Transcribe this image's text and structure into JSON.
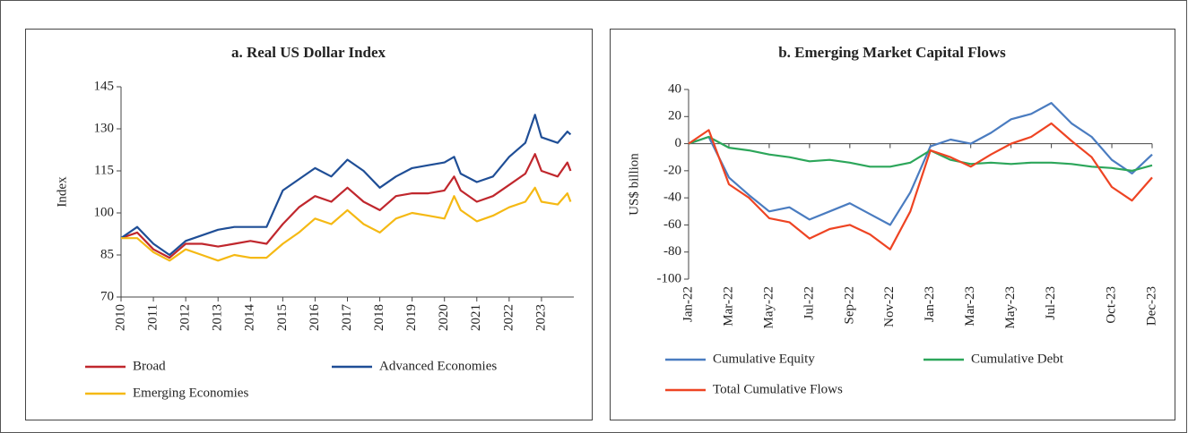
{
  "chart_data": [
    {
      "type": "line",
      "title": "a. Real US Dollar Index",
      "y_label": "Index",
      "x": [
        2010,
        2010.5,
        2011,
        2011.5,
        2012,
        2012.5,
        2013,
        2013.5,
        2014,
        2014.5,
        2015,
        2015.5,
        2016,
        2016.5,
        2017,
        2017.5,
        2018,
        2018.5,
        2019,
        2019.5,
        2020,
        2020.3,
        2020.5,
        2021,
        2021.5,
        2022,
        2022.5,
        2022.8,
        2023,
        2023.5,
        2023.8,
        2023.9
      ],
      "series": [
        {
          "name": "Broad",
          "color": "#c0272d",
          "values": [
            91,
            93,
            87,
            84,
            89,
            89,
            88,
            89,
            90,
            89,
            96,
            102,
            106,
            104,
            109,
            104,
            101,
            106,
            107,
            107,
            108,
            113,
            108,
            104,
            106,
            110,
            114,
            121,
            115,
            113,
            118,
            115
          ]
        },
        {
          "name": "Advanced Economies",
          "color": "#1f4e96",
          "values": [
            91,
            95,
            89,
            85,
            90,
            92,
            94,
            95,
            95,
            95,
            108,
            112,
            116,
            113,
            119,
            115,
            109,
            113,
            116,
            117,
            118,
            120,
            114,
            111,
            113,
            120,
            125,
            135,
            127,
            125,
            129,
            128
          ]
        },
        {
          "name": "Emerging Economies",
          "color": "#f5b914",
          "values": [
            91,
            91,
            86,
            83,
            87,
            85,
            83,
            85,
            84,
            84,
            89,
            93,
            98,
            96,
            101,
            96,
            93,
            98,
            100,
            99,
            98,
            106,
            101,
            97,
            99,
            102,
            104,
            109,
            104,
            103,
            107,
            104
          ]
        }
      ],
      "xlim": [
        2010,
        2024
      ],
      "xticks": [
        2010,
        2011,
        2012,
        2013,
        2014,
        2015,
        2016,
        2017,
        2018,
        2019,
        2020,
        2021,
        2022,
        2023
      ],
      "ylim": [
        70,
        145
      ],
      "yticks": [
        70,
        85,
        100,
        115,
        130,
        145
      ]
    },
    {
      "type": "line",
      "title": "b. Emerging Market Capital Flows",
      "y_label": "US$ billion",
      "x": [
        0,
        1,
        2,
        3,
        4,
        5,
        6,
        7,
        8,
        9,
        10,
        11,
        12,
        13,
        14,
        15,
        16,
        17,
        18,
        19,
        20,
        21,
        22,
        23
      ],
      "series": [
        {
          "name": "Cumulative Equity",
          "color": "#4a7cc0",
          "values": [
            0,
            5,
            -25,
            -38,
            -50,
            -47,
            -56,
            -50,
            -44,
            -52,
            -60,
            -36,
            -2,
            3,
            0,
            8,
            18,
            22,
            30,
            15,
            5,
            -12,
            -22,
            -8
          ]
        },
        {
          "name": "Cumulative Debt",
          "color": "#2ca65a",
          "values": [
            0,
            5,
            -3,
            -5,
            -8,
            -10,
            -13,
            -12,
            -14,
            -17,
            -17,
            -14,
            -5,
            -12,
            -15,
            -14,
            -15,
            -14,
            -14,
            -15,
            -17,
            -18,
            -20,
            -16
          ]
        },
        {
          "name": "Total Cumulative Flows",
          "color": "#ee4423",
          "values": [
            0,
            10,
            -30,
            -40,
            -55,
            -58,
            -70,
            -63,
            -60,
            -67,
            -78,
            -50,
            -5,
            -10,
            -17,
            -8,
            0,
            5,
            15,
            2,
            -10,
            -32,
            -42,
            -25
          ]
        }
      ],
      "xlim": [
        0,
        23
      ],
      "xticks": [
        {
          "value": 0,
          "label": "Jan-22"
        },
        {
          "value": 2,
          "label": "Mar-22"
        },
        {
          "value": 4,
          "label": "May-22"
        },
        {
          "value": 6,
          "label": "Jul-22"
        },
        {
          "value": 8,
          "label": "Sep-22"
        },
        {
          "value": 10,
          "label": "Nov-22"
        },
        {
          "value": 12,
          "label": "Jan-23"
        },
        {
          "value": 14,
          "label": "Mar-23"
        },
        {
          "value": 16,
          "label": "May-23"
        },
        {
          "value": 18,
          "label": "Jul-23"
        },
        {
          "value": 21,
          "label": "Oct-23"
        },
        {
          "value": 23,
          "label": "Dec-23"
        }
      ],
      "ylim": [
        -100,
        40
      ],
      "yticks": [
        -100,
        -80,
        -60,
        -40,
        -20,
        0,
        20,
        40
      ]
    }
  ]
}
